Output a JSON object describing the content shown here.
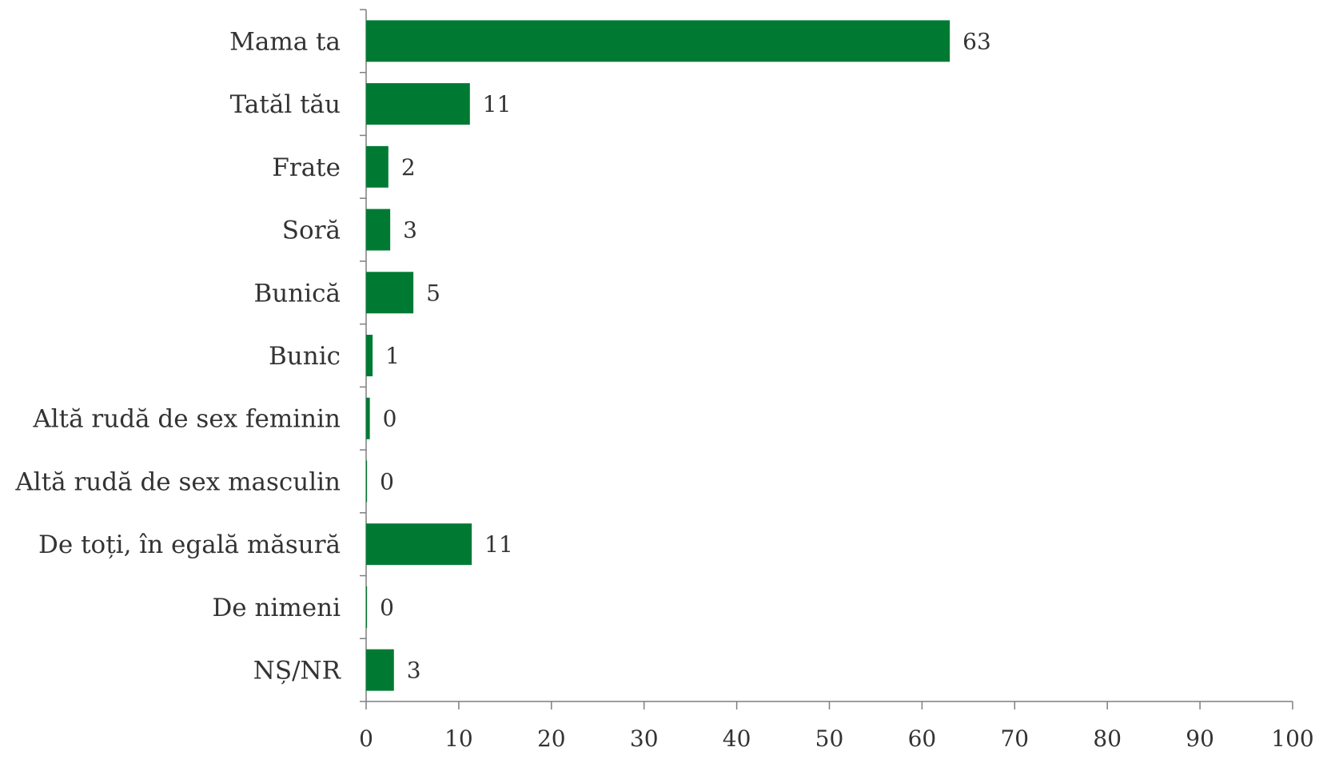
{
  "chart_data": {
    "type": "bar",
    "orientation": "horizontal",
    "title": "",
    "xlabel": "",
    "ylabel": "",
    "categories": [
      "Mama ta",
      "Tatăl tău",
      "Frate",
      "Soră",
      "Bunică",
      "Bunic",
      "Altă rudă de sex feminin",
      "Altă rudă de sex masculin",
      "De toți, în egală măsură",
      "De nimeni",
      "NȘ/NR"
    ],
    "values": [
      63,
      11.2,
      2.4,
      2.6,
      5.1,
      0.7,
      0.4,
      0.1,
      11.4,
      0.1,
      3
    ],
    "data_labels": [
      "63",
      "11",
      "2",
      "3",
      "5",
      "1",
      "0",
      "0",
      "11",
      "0",
      "3"
    ],
    "xlim": [
      0,
      100
    ],
    "xticks": [
      "0",
      "10",
      "20",
      "30",
      "40",
      "50",
      "60",
      "70",
      "80",
      "90",
      "100"
    ],
    "bar_color": "#007a33",
    "grid": false,
    "legend": "none"
  }
}
